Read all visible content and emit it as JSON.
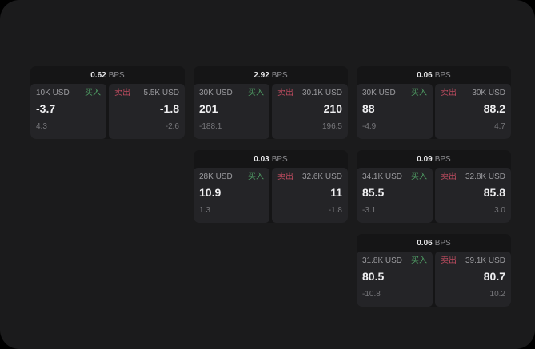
{
  "labels": {
    "buy": "买入",
    "sell": "卖出",
    "bps_unit": "BPS"
  },
  "colors": {
    "outer_background": "#000000",
    "panel_background": "#1b1b1c",
    "group_background": "#151516",
    "tile_background": "#242427",
    "buy_accent": "#4f9d64",
    "sell_accent": "#bf4c60",
    "value_text": "#efeff1",
    "muted_text": "#9b9b9f",
    "faint_text": "#77777b"
  },
  "groups": [
    {
      "bps": "0.62",
      "buy": {
        "size": "10K USD",
        "value": "-3.7",
        "delta": "4.3"
      },
      "sell": {
        "size": "5.5K USD",
        "value": "-1.8",
        "delta": "-2.6"
      }
    },
    {
      "bps": "2.92",
      "buy": {
        "size": "30K USD",
        "value": "201",
        "delta": "-188.1"
      },
      "sell": {
        "size": "30.1K USD",
        "value": "210",
        "delta": "196.5"
      }
    },
    {
      "bps": "0.06",
      "buy": {
        "size": "30K USD",
        "value": "88",
        "delta": "-4.9"
      },
      "sell": {
        "size": "30K USD",
        "value": "88.2",
        "delta": "4.7"
      }
    },
    {
      "bps": "0.03",
      "buy": {
        "size": "28K USD",
        "value": "10.9",
        "delta": "1.3"
      },
      "sell": {
        "size": "32.6K USD",
        "value": "11",
        "delta": "-1.8"
      }
    },
    {
      "bps": "0.09",
      "buy": {
        "size": "34.1K USD",
        "value": "85.5",
        "delta": "-3.1"
      },
      "sell": {
        "size": "32.8K USD",
        "value": "85.8",
        "delta": "3.0"
      }
    },
    {
      "bps": "0.06",
      "buy": {
        "size": "31.8K USD",
        "value": "80.5",
        "delta": "-10.8"
      },
      "sell": {
        "size": "39.1K USD",
        "value": "80.7",
        "delta": "10.2"
      }
    }
  ]
}
